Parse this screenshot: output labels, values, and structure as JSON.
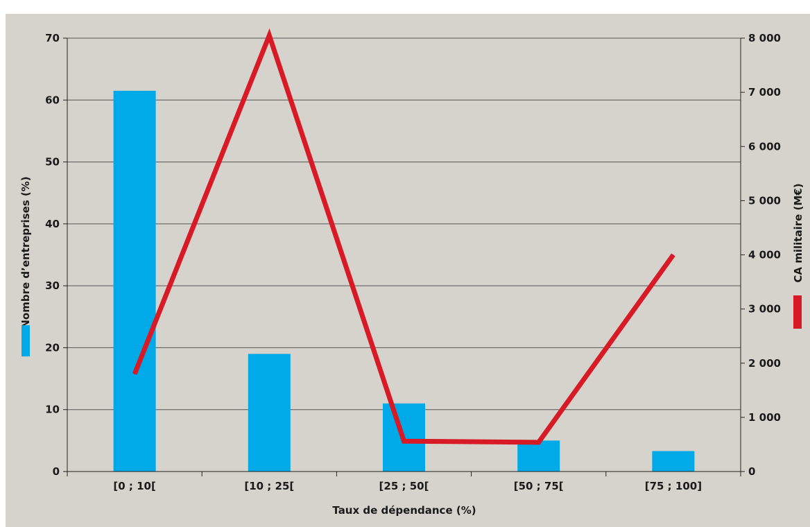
{
  "chart_data": {
    "type": "bar",
    "categories": [
      "[0 ; 10[",
      "[10 ; 25[",
      "[25 ; 50[",
      "[50 ; 75[",
      "[75 ; 100]"
    ],
    "xlabel": "Taux de dépendance (%)",
    "ylabel": "Nombre d’entreprises (%)",
    "y2label": "CA militaire (M€)",
    "ylim": [
      0,
      70
    ],
    "y2lim": [
      0,
      8000
    ],
    "yticks": [
      0,
      10,
      20,
      30,
      40,
      50,
      60,
      70
    ],
    "y2ticks": [
      "0",
      "1 000",
      "2 000",
      "3 000",
      "4 000",
      "5 000",
      "6 000",
      "7 000",
      "8 000"
    ],
    "grid": true,
    "series": [
      {
        "type": "bar",
        "axis": "left",
        "color": "#00a9e8",
        "values": [
          61.5,
          19,
          11,
          5,
          3.3
        ]
      },
      {
        "type": "line",
        "axis": "right",
        "color": "#d71a25",
        "values": [
          1800,
          8050,
          560,
          540,
          4000
        ]
      }
    ]
  }
}
